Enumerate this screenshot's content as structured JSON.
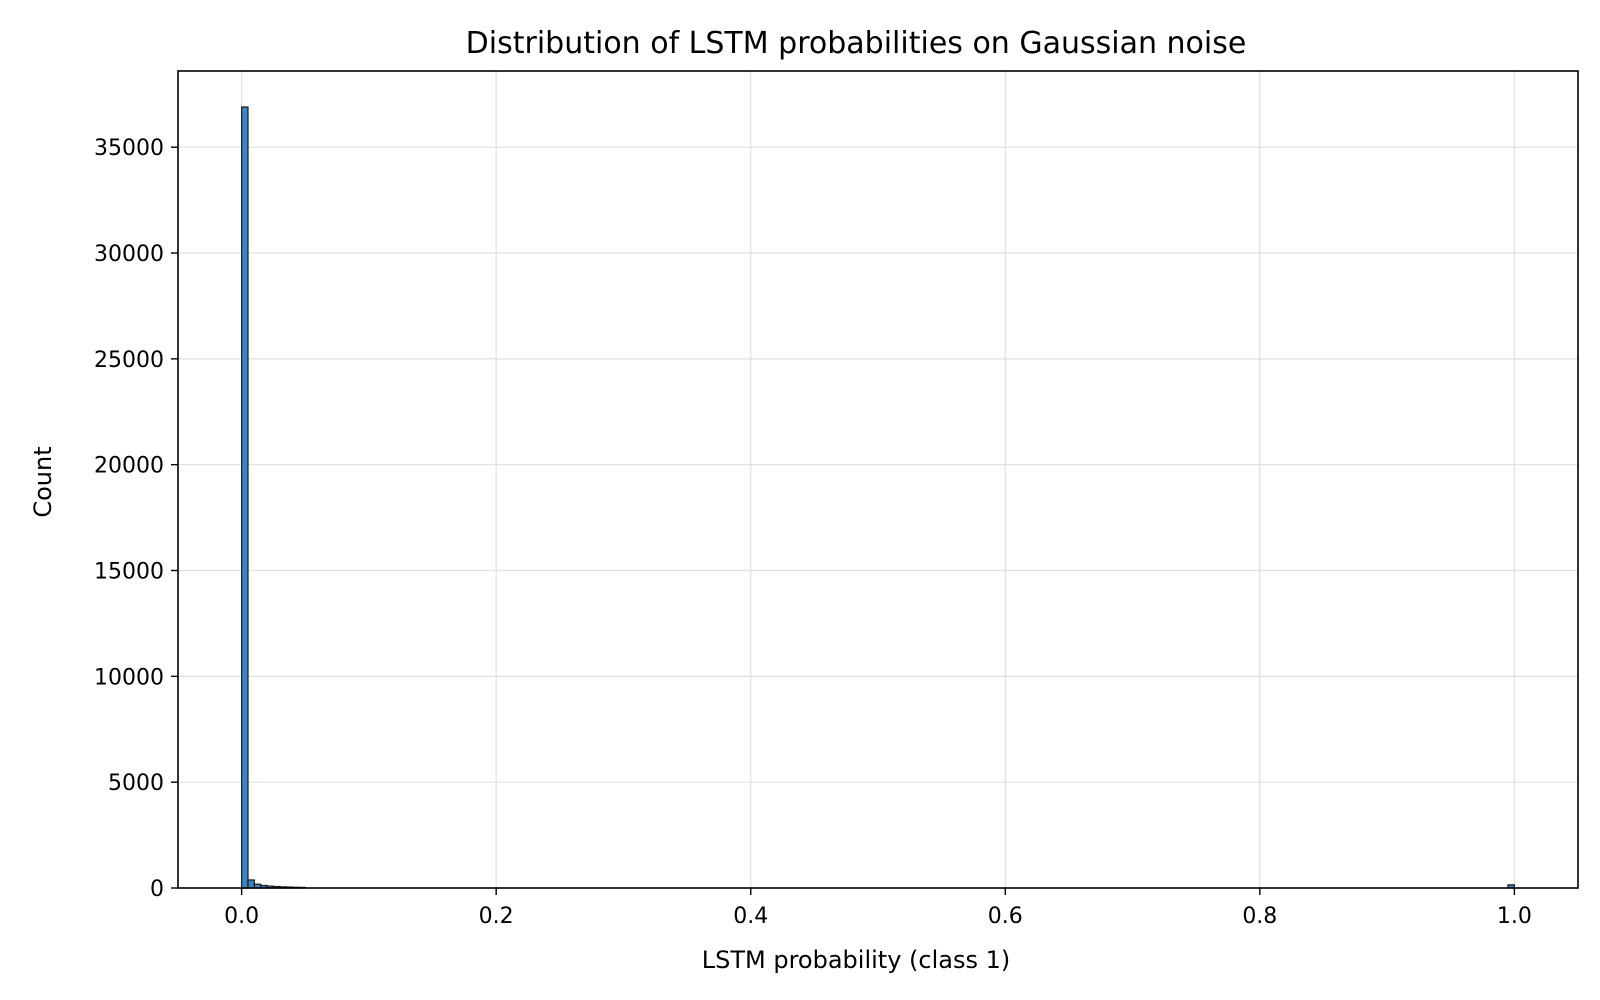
{
  "chart_data": {
    "type": "bar",
    "title": "Distribution of LSTM probabilities on Gaussian noise",
    "xlabel": "LSTM probability (class 1)",
    "ylabel": "Count",
    "xlim": [
      -0.05,
      1.05
    ],
    "ylim": [
      0,
      38600
    ],
    "x_ticks": [
      0.0,
      0.2,
      0.4,
      0.6,
      0.8,
      1.0
    ],
    "x_tick_labels": [
      "0.0",
      "0.2",
      "0.4",
      "0.6",
      "0.8",
      "1.0"
    ],
    "y_ticks": [
      0,
      5000,
      10000,
      15000,
      20000,
      25000,
      30000,
      35000
    ],
    "y_tick_labels": [
      "0",
      "5000",
      "10000",
      "15000",
      "20000",
      "25000",
      "30000",
      "35000"
    ],
    "grid": true,
    "bar_color": "#3a86c4",
    "bins": [
      {
        "x0": 0.0,
        "x1": 0.005,
        "count": 36900
      },
      {
        "x0": 0.005,
        "x1": 0.01,
        "count": 380
      },
      {
        "x0": 0.01,
        "x1": 0.015,
        "count": 180
      },
      {
        "x0": 0.015,
        "x1": 0.02,
        "count": 120
      },
      {
        "x0": 0.02,
        "x1": 0.025,
        "count": 90
      },
      {
        "x0": 0.025,
        "x1": 0.03,
        "count": 70
      },
      {
        "x0": 0.03,
        "x1": 0.035,
        "count": 55
      },
      {
        "x0": 0.035,
        "x1": 0.04,
        "count": 45
      },
      {
        "x0": 0.04,
        "x1": 0.045,
        "count": 35
      },
      {
        "x0": 0.045,
        "x1": 0.05,
        "count": 28
      },
      {
        "x0": 0.995,
        "x1": 1.0,
        "count": 150
      }
    ]
  }
}
